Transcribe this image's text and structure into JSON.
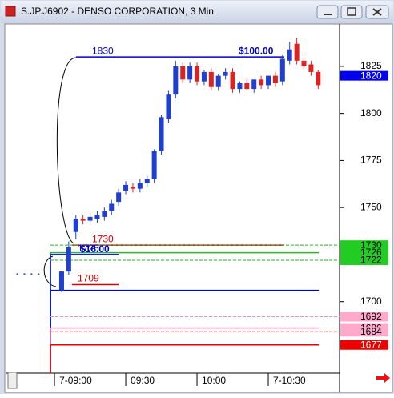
{
  "window": {
    "title": "S.JP.J6902 - DENSO CORPORATION, 3 Min"
  },
  "chart_data": {
    "type": "candlestick",
    "x": [
      -5,
      -4,
      -3,
      -2,
      1,
      2,
      3,
      4,
      5,
      6,
      7,
      8,
      9,
      10,
      11,
      12,
      13,
      14,
      15,
      16,
      17,
      18,
      19,
      20,
      21,
      22,
      23,
      24,
      25,
      26,
      27,
      28,
      29,
      30,
      31,
      32,
      33,
      34,
      35,
      36,
      37
    ],
    "open": [
      1715,
      1715,
      1715,
      1715,
      1706,
      1716,
      1737,
      1744,
      1743,
      1744,
      1745,
      1748,
      1753,
      1759,
      1761,
      1760,
      1763,
      1765,
      1780,
      1797,
      1810,
      1825,
      1818,
      1825,
      1817,
      1822,
      1814,
      1820,
      1822,
      1813,
      1816,
      1813,
      1818,
      1815,
      1820,
      1817,
      1828,
      1837,
      1828,
      1826,
      1822
    ],
    "high": [
      1715,
      1715,
      1715,
      1715,
      1716,
      1732,
      1746,
      1746,
      1747,
      1748,
      1750,
      1754,
      1760,
      1764,
      1763,
      1765,
      1767,
      1781,
      1799,
      1812,
      1828,
      1827,
      1827,
      1827,
      1823,
      1824,
      1821,
      1824,
      1824,
      1817,
      1819,
      1818,
      1820,
      1820,
      1822,
      1831,
      1838,
      1840,
      1830,
      1828,
      1823
    ],
    "low": [
      1715,
      1715,
      1715,
      1715,
      1705,
      1714,
      1733,
      1741,
      1741,
      1742,
      1743,
      1746,
      1751,
      1757,
      1758,
      1758,
      1761,
      1763,
      1778,
      1795,
      1808,
      1816,
      1816,
      1815,
      1815,
      1812,
      1812,
      1818,
      1811,
      1811,
      1812,
      1811,
      1813,
      1813,
      1814,
      1815,
      1826,
      1826,
      1823,
      1820,
      1813
    ],
    "close": [
      1715,
      1715,
      1715,
      1715,
      1716,
      1729,
      1744,
      1743,
      1745,
      1746,
      1748,
      1752,
      1758,
      1762,
      1760,
      1763,
      1765,
      1780,
      1798,
      1810,
      1825,
      1818,
      1825,
      1817,
      1822,
      1814,
      1820,
      1822,
      1813,
      1816,
      1813,
      1818,
      1815,
      1820,
      1816,
      1829,
      1834,
      1828,
      1825,
      1822,
      1815
    ],
    "up_color": "#1e3fd0",
    "down_color": "#dd2222",
    "xlim": [
      -6.75,
      40
    ],
    "ylim": [
      1662,
      1847.5
    ],
    "xticks": [
      {
        "value": 0,
        "label": "7-09:00"
      },
      {
        "value": 10,
        "label": "09:30"
      },
      {
        "value": 20,
        "label": "10:00"
      },
      {
        "value": 30,
        "label": "7-10:30"
      }
    ],
    "yticks": [
      1700,
      1750,
      1775,
      1800,
      1825
    ],
    "levels": [
      {
        "value": 1830,
        "color": "#0000cc",
        "dashed": false,
        "labelled": true,
        "note": "$100.00"
      },
      {
        "value": 1730,
        "color": "#dd0000",
        "dashed": false,
        "labelled": true
      },
      {
        "value": 1730,
        "color": "#22bb22",
        "dashed": true,
        "labelled": false
      },
      {
        "value": 1726,
        "color": "#22bb22",
        "dashed": false,
        "labelled": false
      },
      {
        "value": 1725,
        "color": "#0000cc",
        "dashed": false,
        "labelled": true,
        "note": "$16.00"
      },
      {
        "value": 1722,
        "color": "#22bb22",
        "dashed": true,
        "labelled": false
      },
      {
        "value": 1709,
        "color": "#dd0000",
        "dashed": false,
        "labelled": true
      },
      {
        "value": 1706,
        "color": "#0000cc",
        "dashed": false,
        "labelled": false
      },
      {
        "value": 1692,
        "color": "#ff88bb",
        "dashed": true,
        "labelled": false
      },
      {
        "value": 1686,
        "color": "#ff88bb",
        "dashed": false,
        "labelled": false
      },
      {
        "value": 1684,
        "color": "#ee3333",
        "dashed": true,
        "labelled": false
      },
      {
        "value": 1677,
        "color": "#ee0000",
        "dashed": false,
        "labelled": false
      }
    ],
    "price_tags": [
      {
        "value": 1820,
        "color": "#0000ee",
        "text_color": "#ffffff"
      },
      {
        "value": 1730,
        "color": "#22cc22",
        "text_color": "#000000"
      },
      {
        "value": 1726,
        "color": "#22cc22",
        "text_color": "#000000"
      },
      {
        "value": 1722,
        "color": "#22cc22",
        "text_color": "#000000"
      },
      {
        "value": 1692,
        "color": "#ffaacc",
        "text_color": "#000000"
      },
      {
        "value": 1686,
        "color": "#ffaacc",
        "text_color": "#000000"
      },
      {
        "value": 1684,
        "color": "#ffaacc",
        "text_color": "#000000"
      },
      {
        "value": 1677,
        "color": "#ee0000",
        "text_color": "#ffffff"
      }
    ]
  }
}
